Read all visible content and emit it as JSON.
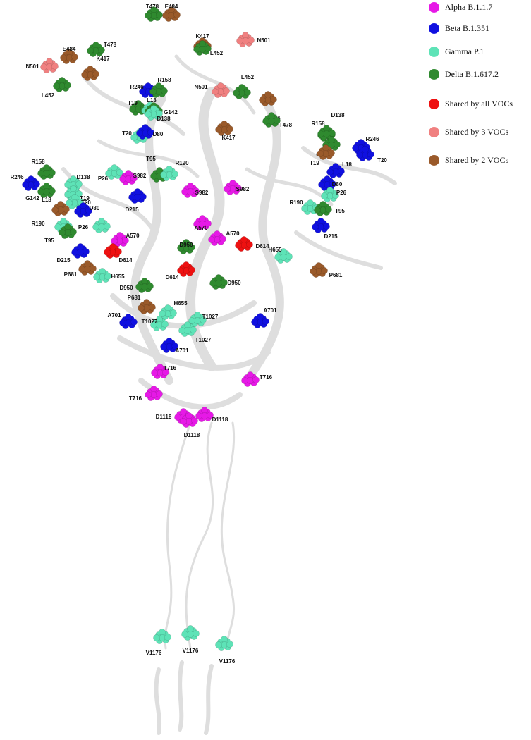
{
  "legend": [
    {
      "label": "Alpha B.1.1.7",
      "color": "#e619e6"
    },
    {
      "label": "Beta B.1.351",
      "color": "#1010e0"
    },
    {
      "label": "Gamma P.1",
      "color": "#5ee3b7"
    },
    {
      "label": "Delta B.1.617.2",
      "color": "#2f8a2f"
    },
    {
      "label": "Shared by all VOCs",
      "color": "#ee1111"
    },
    {
      "label": "Shared by 3 VOCs",
      "color": "#f08080"
    },
    {
      "label": "Shared by 2 VOCs",
      "color": "#9a5a2a"
    }
  ],
  "residues": [
    {
      "label": "T478",
      "variant": "delta"
    },
    {
      "label": "E484",
      "variant": "shared2"
    },
    {
      "label": "K417",
      "variant": "shared2"
    },
    {
      "label": "N501",
      "variant": "shared3"
    },
    {
      "label": "L452",
      "variant": "delta"
    },
    {
      "label": "E484",
      "variant": "shared2"
    },
    {
      "label": "T478",
      "variant": "delta"
    },
    {
      "label": "N501",
      "variant": "shared3"
    },
    {
      "label": "K417",
      "variant": "shared2"
    },
    {
      "label": "L452",
      "variant": "delta"
    },
    {
      "label": "N501",
      "variant": "shared3"
    },
    {
      "label": "L452",
      "variant": "delta"
    },
    {
      "label": "E484",
      "variant": "shared2"
    },
    {
      "label": "K417",
      "variant": "shared2"
    },
    {
      "label": "T478",
      "variant": "delta"
    },
    {
      "label": "R246",
      "variant": "beta"
    },
    {
      "label": "R158",
      "variant": "delta"
    },
    {
      "label": "T19",
      "variant": "delta"
    },
    {
      "label": "L18",
      "variant": "gamma"
    },
    {
      "label": "G142",
      "variant": "delta"
    },
    {
      "label": "D138",
      "variant": "gamma"
    },
    {
      "label": "T20",
      "variant": "gamma"
    },
    {
      "label": "D80",
      "variant": "beta"
    },
    {
      "label": "P26",
      "variant": "gamma"
    },
    {
      "label": "S982",
      "variant": "alpha"
    },
    {
      "label": "T95",
      "variant": "delta"
    },
    {
      "label": "R190",
      "variant": "gamma"
    },
    {
      "label": "S982",
      "variant": "alpha"
    },
    {
      "label": "S982",
      "variant": "alpha"
    },
    {
      "label": "D215",
      "variant": "beta"
    },
    {
      "label": "R246",
      "variant": "beta"
    },
    {
      "label": "R158",
      "variant": "delta"
    },
    {
      "label": "D138",
      "variant": "gamma"
    },
    {
      "label": "T19",
      "variant": "gamma"
    },
    {
      "label": "G142",
      "variant": "delta"
    },
    {
      "label": "T20",
      "variant": "gamma"
    },
    {
      "label": "L18",
      "variant": "shared2"
    },
    {
      "label": "D80",
      "variant": "beta"
    },
    {
      "label": "R190",
      "variant": "gamma"
    },
    {
      "label": "P26",
      "variant": "gamma"
    },
    {
      "label": "T95",
      "variant": "delta"
    },
    {
      "label": "A570",
      "variant": "alpha"
    },
    {
      "label": "D215",
      "variant": "beta"
    },
    {
      "label": "D614",
      "variant": "shared"
    },
    {
      "label": "P681",
      "variant": "shared2"
    },
    {
      "label": "A570",
      "variant": "alpha"
    },
    {
      "label": "A570",
      "variant": "alpha"
    },
    {
      "label": "D614",
      "variant": "shared"
    },
    {
      "label": "D950",
      "variant": "delta"
    },
    {
      "label": "D614",
      "variant": "shared"
    },
    {
      "label": "H655",
      "variant": "gamma"
    },
    {
      "label": "D950",
      "variant": "delta"
    },
    {
      "label": "D950",
      "variant": "delta"
    },
    {
      "label": "H655",
      "variant": "gamma"
    },
    {
      "label": "P681",
      "variant": "shared2"
    },
    {
      "label": "P681",
      "variant": "shared2"
    },
    {
      "label": "H655",
      "variant": "gamma"
    },
    {
      "label": "T1027",
      "variant": "gamma"
    },
    {
      "label": "T1027",
      "variant": "gamma"
    },
    {
      "label": "T1027",
      "variant": "gamma"
    },
    {
      "label": "A701",
      "variant": "beta"
    },
    {
      "label": "A701",
      "variant": "beta"
    },
    {
      "label": "A701",
      "variant": "beta"
    },
    {
      "label": "T716",
      "variant": "alpha"
    },
    {
      "label": "T716",
      "variant": "alpha"
    },
    {
      "label": "T716",
      "variant": "alpha"
    },
    {
      "label": "D1118",
      "variant": "alpha"
    },
    {
      "label": "D1118",
      "variant": "alpha"
    },
    {
      "label": "D1118",
      "variant": "alpha"
    },
    {
      "label": "R158",
      "variant": "delta"
    },
    {
      "label": "D138",
      "variant": "delta"
    },
    {
      "label": "R246",
      "variant": "beta"
    },
    {
      "label": "T20",
      "variant": "beta"
    },
    {
      "label": "G142",
      "variant": "delta"
    },
    {
      "label": "T19",
      "variant": "shared2"
    },
    {
      "label": "L18",
      "variant": "beta"
    },
    {
      "label": "D80",
      "variant": "beta"
    },
    {
      "label": "P26",
      "variant": "gamma"
    },
    {
      "label": "R190",
      "variant": "gamma"
    },
    {
      "label": "T95",
      "variant": "delta"
    },
    {
      "label": "D215",
      "variant": "beta"
    },
    {
      "label": "V1176",
      "variant": "gamma"
    },
    {
      "label": "V1176",
      "variant": "gamma"
    },
    {
      "label": "V1176",
      "variant": "gamma"
    }
  ],
  "colors": {
    "alpha": "#e619e6",
    "beta": "#1010e0",
    "gamma": "#5ee3b7",
    "delta": "#2f8a2f",
    "shared": "#ee1111",
    "shared3": "#f08080",
    "shared2": "#9a5a2a",
    "ribbon": "#dedede"
  }
}
